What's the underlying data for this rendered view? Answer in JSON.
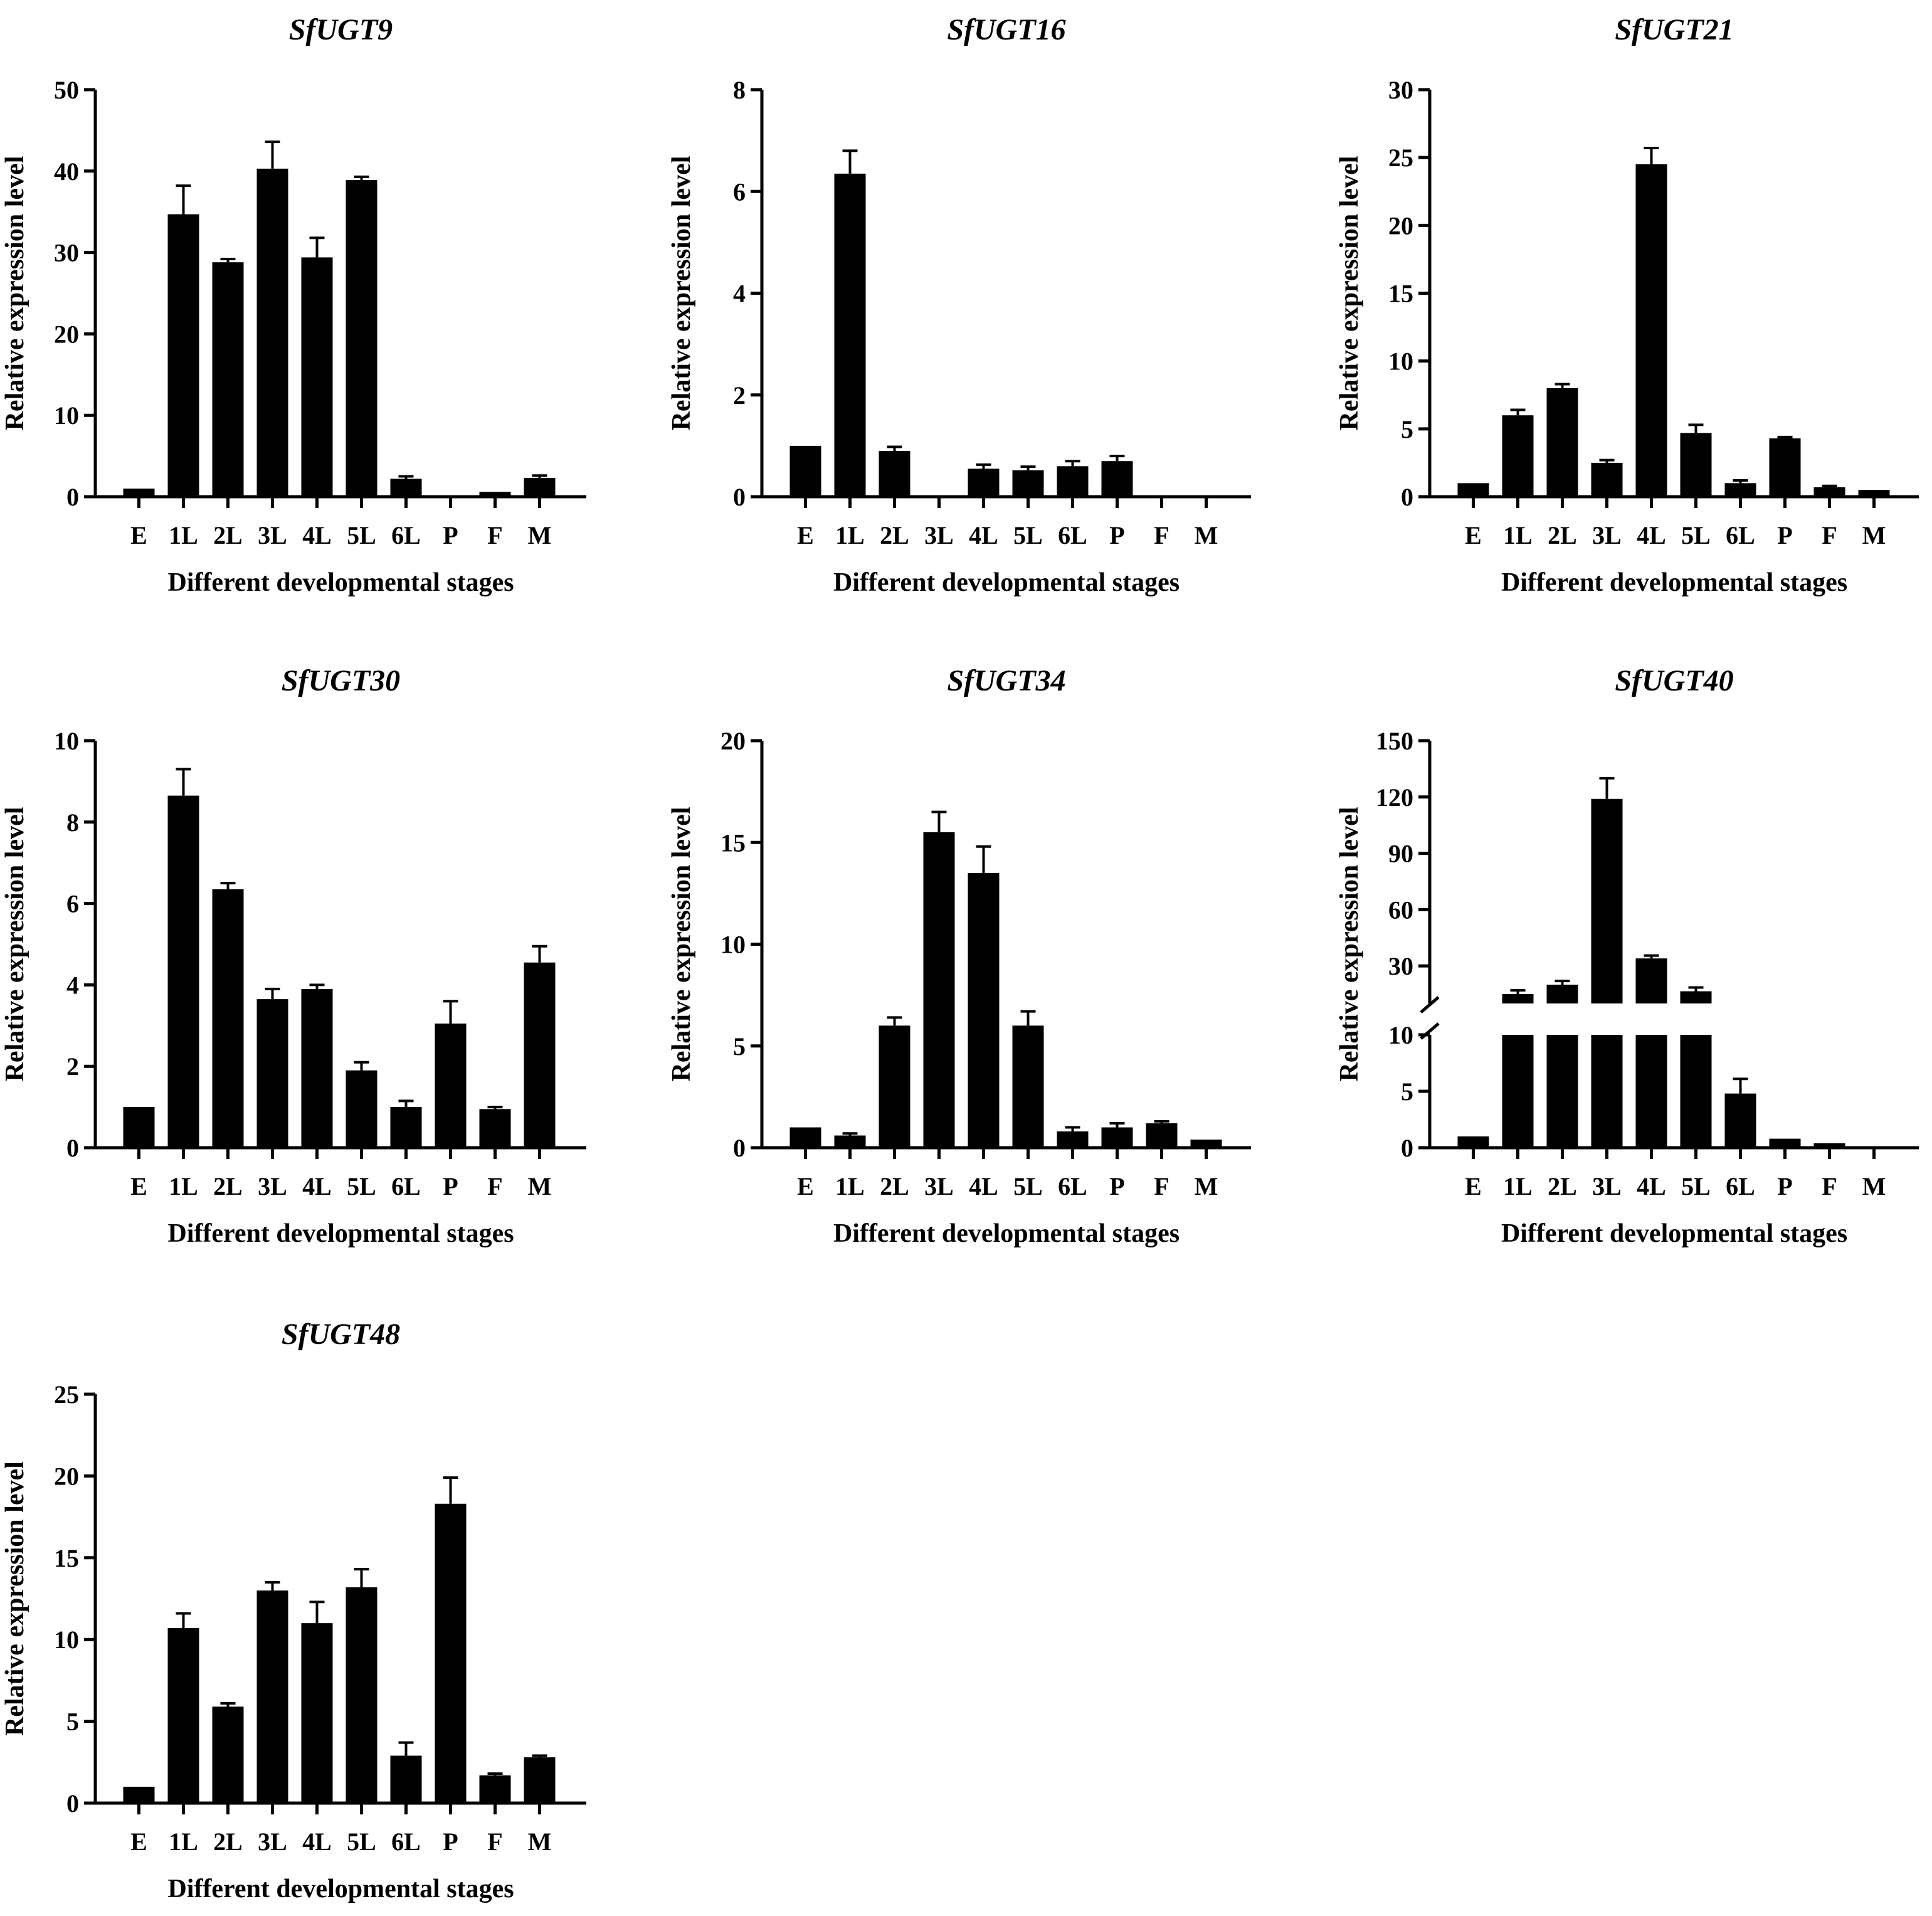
{
  "figure": {
    "xlabel": "Different developmental stages",
    "ylabel": "Relative expression level",
    "categories": [
      "E",
      "1L",
      "2L",
      "3L",
      "4L",
      "5L",
      "6L",
      "P",
      "F",
      "M"
    ]
  },
  "colors": {
    "bar": "#000000",
    "axis": "#000000",
    "background": "#ffffff"
  },
  "chart_data": [
    {
      "type": "bar",
      "title": "SfUGT9",
      "xlabel": "Different developmental stages",
      "ylabel": "Relative expression level",
      "categories": [
        "E",
        "1L",
        "2L",
        "3L",
        "4L",
        "5L",
        "6L",
        "P",
        "F",
        "M"
      ],
      "values": [
        1.0,
        34.7,
        28.8,
        40.3,
        29.4,
        38.9,
        2.2,
        0.1,
        0.6,
        2.3
      ],
      "errors": [
        0.1,
        3.5,
        0.4,
        3.3,
        2.4,
        0.4,
        0.3,
        0.05,
        0.1,
        0.3
      ],
      "ylim": [
        0,
        50
      ],
      "yticks": [
        0,
        10,
        20,
        30,
        40,
        50
      ],
      "grid": false
    },
    {
      "type": "bar",
      "title": "SfUGT16",
      "xlabel": "Different developmental stages",
      "ylabel": "Relative expression level",
      "categories": [
        "E",
        "1L",
        "2L",
        "3L",
        "4L",
        "5L",
        "6L",
        "P",
        "F",
        "M"
      ],
      "values": [
        1.0,
        6.35,
        0.9,
        0.02,
        0.55,
        0.52,
        0.6,
        0.7,
        0.01,
        0.02
      ],
      "errors": [
        0.02,
        0.45,
        0.08,
        0.02,
        0.08,
        0.07,
        0.1,
        0.1,
        0.01,
        0.02
      ],
      "ylim": [
        0,
        8
      ],
      "yticks": [
        0,
        2,
        4,
        6,
        8
      ],
      "grid": false
    },
    {
      "type": "bar",
      "title": "SfUGT21",
      "xlabel": "Different developmental stages",
      "ylabel": "Relative expression level",
      "categories": [
        "E",
        "1L",
        "2L",
        "3L",
        "4L",
        "5L",
        "6L",
        "P",
        "F",
        "M"
      ],
      "values": [
        1.0,
        6.0,
        8.0,
        2.5,
        24.5,
        4.7,
        1.0,
        4.3,
        0.7,
        0.5
      ],
      "errors": [
        0.05,
        0.4,
        0.3,
        0.2,
        1.2,
        0.6,
        0.2,
        0.1,
        0.1,
        0.05
      ],
      "ylim": [
        0,
        30
      ],
      "yticks": [
        0,
        5,
        10,
        15,
        20,
        25,
        30
      ],
      "grid": false
    },
    {
      "type": "bar",
      "title": "SfUGT30",
      "xlabel": "Different developmental stages",
      "ylabel": "Relative expression level",
      "categories": [
        "E",
        "1L",
        "2L",
        "3L",
        "4L",
        "5L",
        "6L",
        "P",
        "F",
        "M"
      ],
      "values": [
        1.0,
        8.65,
        6.35,
        3.65,
        3.9,
        1.9,
        1.0,
        3.05,
        0.95,
        4.55
      ],
      "errors": [
        0.02,
        0.65,
        0.15,
        0.25,
        0.1,
        0.2,
        0.15,
        0.55,
        0.05,
        0.4
      ],
      "ylim": [
        0,
        10
      ],
      "yticks": [
        0,
        2,
        4,
        6,
        8,
        10
      ],
      "grid": false
    },
    {
      "type": "bar",
      "title": "SfUGT34",
      "xlabel": "Different developmental stages",
      "ylabel": "Relative expression level",
      "categories": [
        "E",
        "1L",
        "2L",
        "3L",
        "4L",
        "5L",
        "6L",
        "P",
        "F",
        "M"
      ],
      "values": [
        1.0,
        0.6,
        6.0,
        15.5,
        13.5,
        6.0,
        0.8,
        1.0,
        1.2,
        0.4
      ],
      "errors": [
        0.05,
        0.1,
        0.4,
        1.0,
        1.3,
        0.7,
        0.2,
        0.2,
        0.1,
        0.05
      ],
      "ylim": [
        0,
        20
      ],
      "yticks": [
        0,
        5,
        10,
        15,
        20
      ],
      "grid": false
    },
    {
      "type": "bar",
      "title": "SfUGT40",
      "xlabel": "Different developmental stages",
      "ylabel": "Relative expression level",
      "categories": [
        "E",
        "1L",
        "2L",
        "3L",
        "4L",
        "5L",
        "6L",
        "P",
        "F",
        "M"
      ],
      "values": [
        1.0,
        15.0,
        20.0,
        119.0,
        34.0,
        16.5,
        4.8,
        0.8,
        0.4,
        0.05
      ],
      "errors": [
        0.05,
        2.0,
        2.0,
        11.0,
        1.5,
        2.0,
        1.3,
        0.1,
        0.1,
        0.02
      ],
      "axis_break": {
        "lower_range": [
          0,
          10
        ],
        "upper_range": [
          10,
          150
        ]
      },
      "yticks": [
        0,
        5,
        10,
        30,
        60,
        90,
        120,
        150
      ],
      "grid": false
    },
    {
      "type": "bar",
      "title": "SfUGT48",
      "xlabel": "Different developmental stages",
      "ylabel": "Relative expression level",
      "categories": [
        "E",
        "1L",
        "2L",
        "3L",
        "4L",
        "5L",
        "6L",
        "P",
        "F",
        "M"
      ],
      "values": [
        1.0,
        10.7,
        5.9,
        13.0,
        11.0,
        13.2,
        2.9,
        18.3,
        1.7,
        2.8
      ],
      "errors": [
        0.02,
        0.9,
        0.2,
        0.5,
        1.3,
        1.1,
        0.8,
        1.6,
        0.1,
        0.1
      ],
      "ylim": [
        0,
        25
      ],
      "yticks": [
        0,
        5,
        10,
        15,
        20,
        25
      ],
      "grid": false
    }
  ]
}
